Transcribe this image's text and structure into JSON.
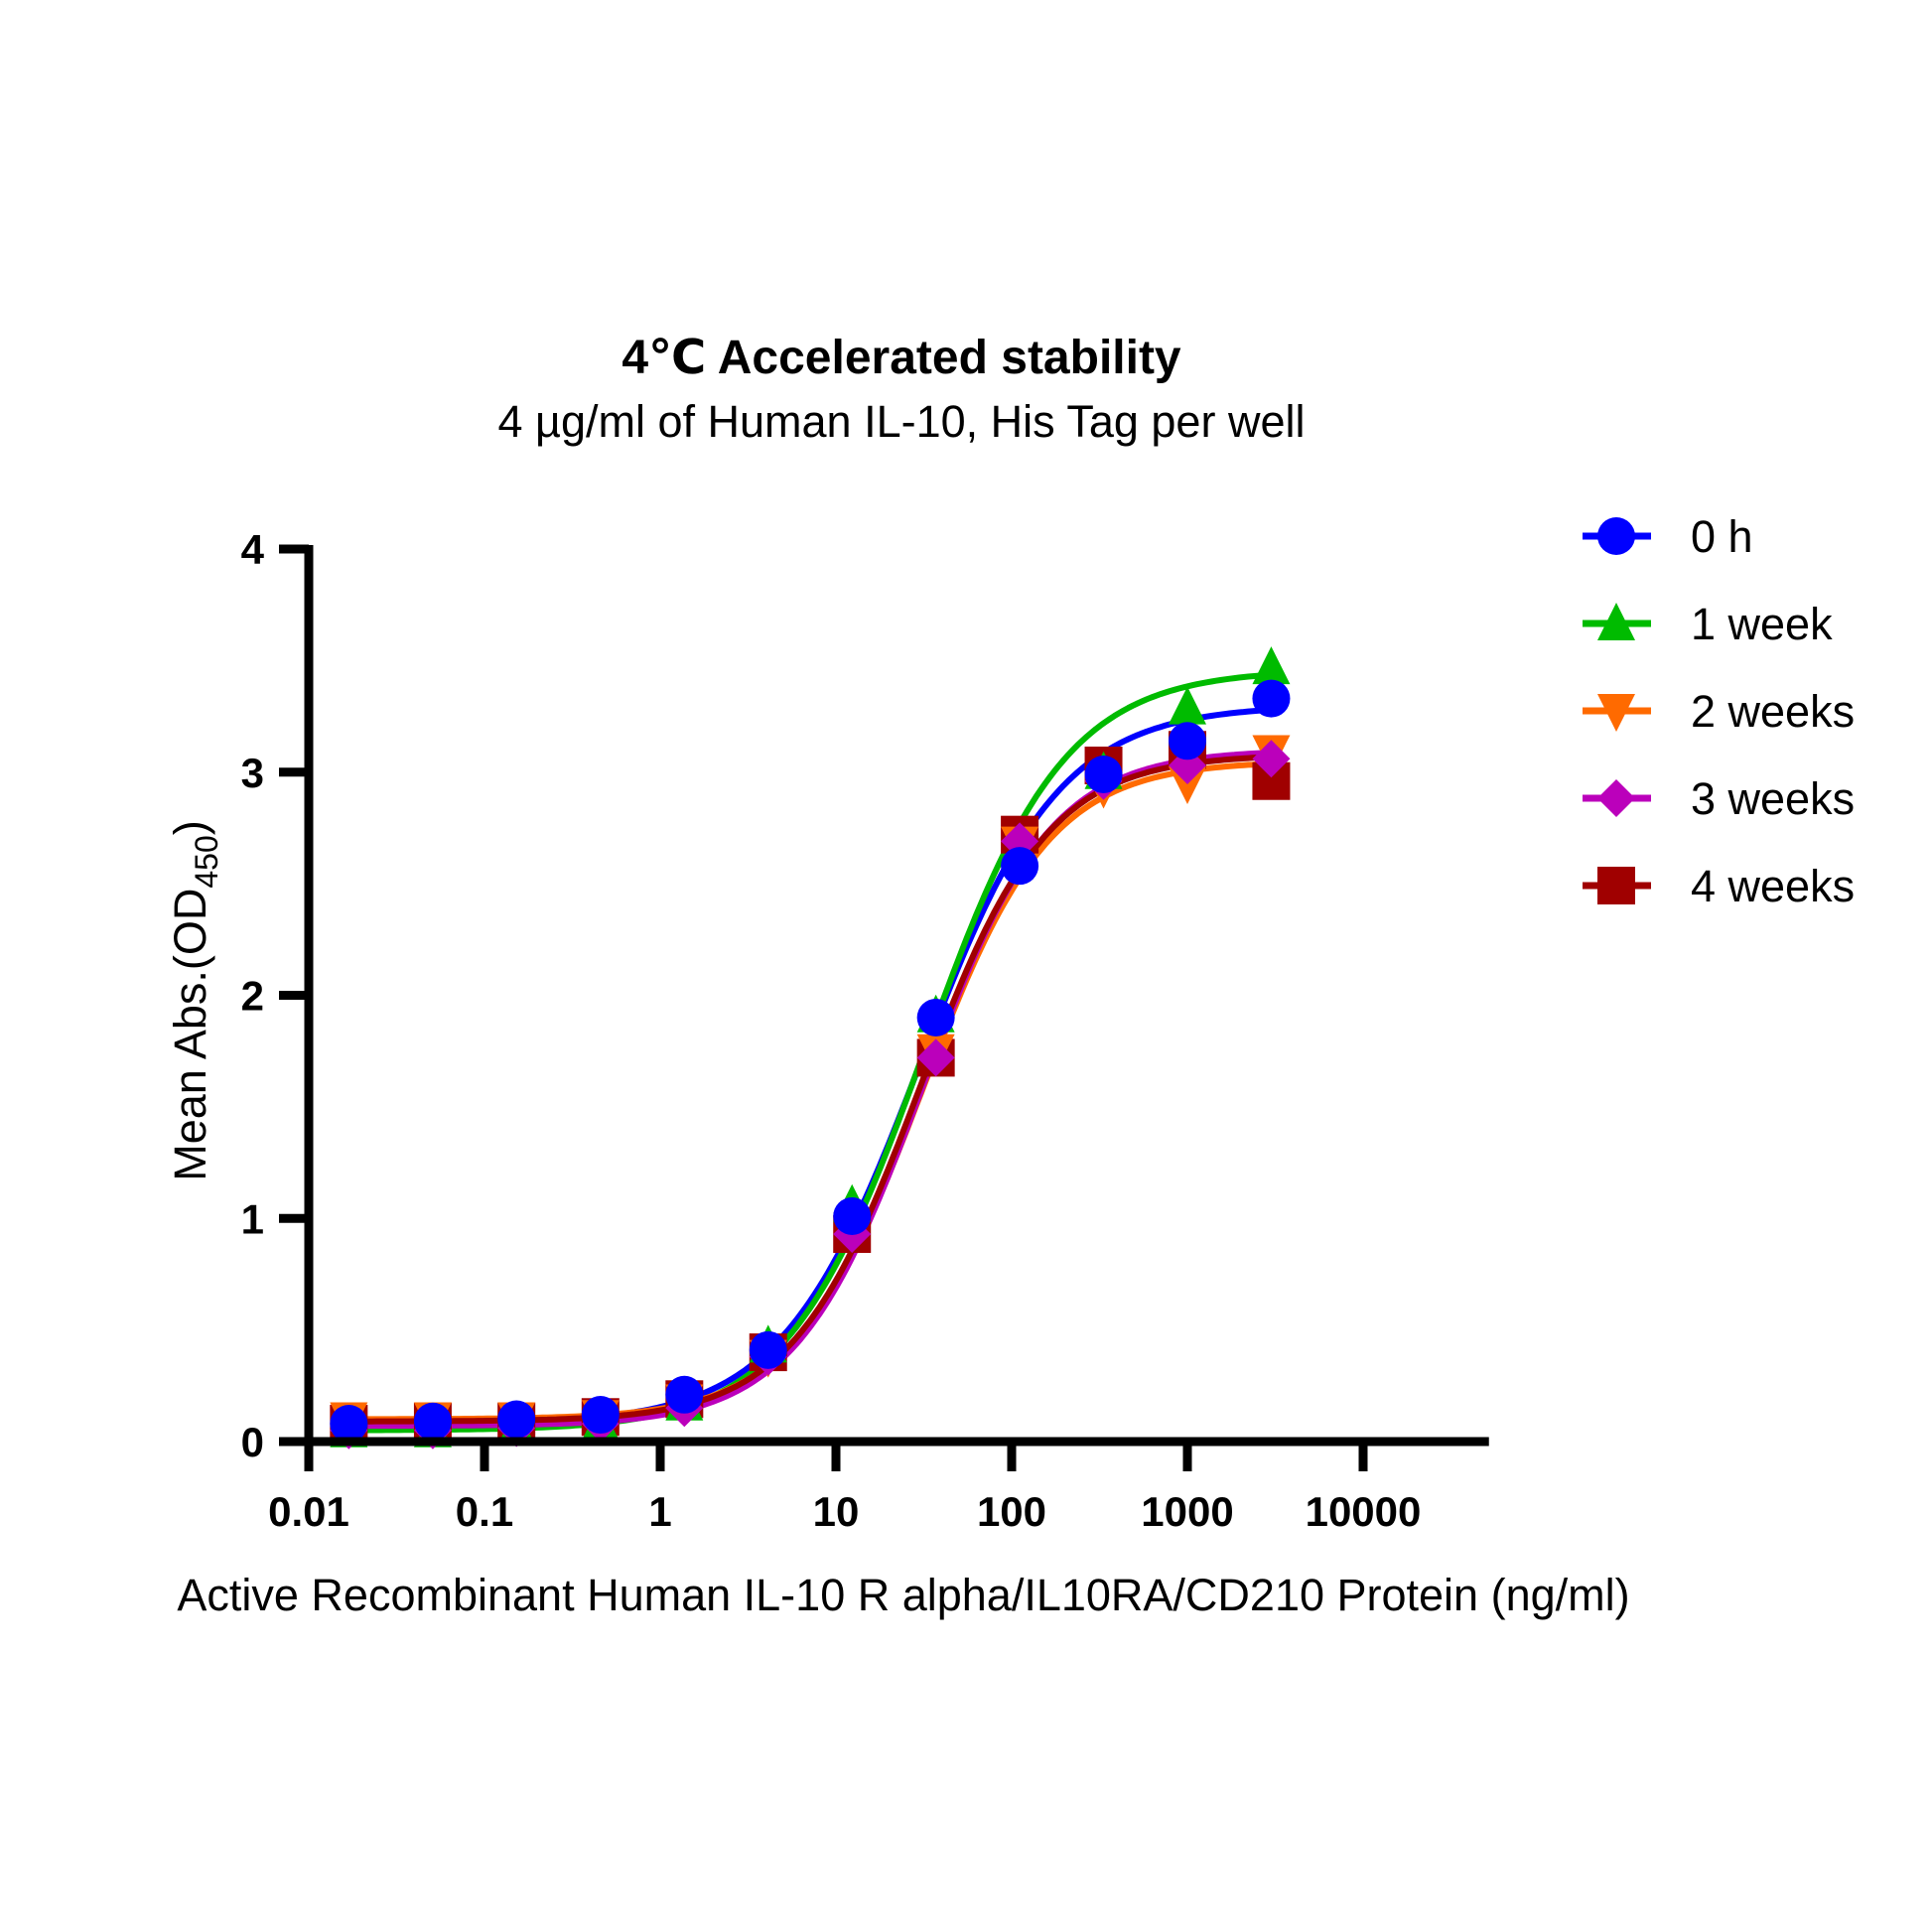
{
  "chart_data": {
    "type": "scatter",
    "title": "4℃ Accelerated stability",
    "subtitle": "4 µg/ml of Human IL-10, His Tag per well",
    "xlabel": "Active Recombinant Human IL-10 R alpha/IL10RA/CD210 Protein (ng/ml)",
    "ylabel_main": "Mean Abs.(OD",
    "ylabel_sub": "450",
    "ylabel_close": ")",
    "xscale": "log",
    "xlim": [
      0.01,
      52000
    ],
    "ylim": [
      0,
      4
    ],
    "xticks": [
      0.01,
      0.1,
      1,
      10,
      100,
      1000,
      10000
    ],
    "xtick_labels": [
      "0.01",
      "0.1",
      "1",
      "10",
      "100",
      "1000",
      "10000"
    ],
    "yticks": [
      0,
      1,
      2,
      3,
      4
    ],
    "ytick_labels": [
      "0",
      "1",
      "2",
      "3",
      "4"
    ],
    "grid": false,
    "legend_position": "right",
    "x": [
      0.0169,
      0.0508,
      0.152,
      0.457,
      1.372,
      4.115,
      12.35,
      37.04,
      111.1,
      333.3,
      1000,
      3000
    ],
    "series": [
      {
        "name": "0 h",
        "color": "#0000FF",
        "marker": "circle",
        "values": [
          0.08,
          0.09,
          0.1,
          0.12,
          0.21,
          0.41,
          1.01,
          1.9,
          2.58,
          2.99,
          3.14,
          3.33
        ],
        "fit": {
          "bottom": 0.08,
          "top": 3.3,
          "ec50": 30,
          "hill": 1.1
        }
      },
      {
        "name": "1 week",
        "color": "#00BB00",
        "marker": "triangle-up",
        "values": [
          0.05,
          0.05,
          0.06,
          0.08,
          0.17,
          0.43,
          1.06,
          1.91,
          2.65,
          3.0,
          3.29,
          3.47
        ],
        "fit": {
          "bottom": 0.05,
          "top": 3.46,
          "ec50": 32,
          "hill": 1.1
        }
      },
      {
        "name": "2 weeks",
        "color": "#FF6A00",
        "marker": "triangle-down",
        "values": [
          0.1,
          0.1,
          0.1,
          0.11,
          0.18,
          0.38,
          0.95,
          1.75,
          2.68,
          2.93,
          2.95,
          3.09
        ],
        "fit": {
          "bottom": 0.1,
          "top": 3.05,
          "ec50": 31,
          "hill": 1.2
        }
      },
      {
        "name": "3 weeks",
        "color": "#BB00BB",
        "marker": "diamond",
        "values": [
          0.05,
          0.05,
          0.06,
          0.08,
          0.15,
          0.38,
          0.93,
          1.72,
          2.69,
          2.96,
          3.03,
          3.06
        ],
        "fit": {
          "bottom": 0.07,
          "top": 3.1,
          "ec50": 31,
          "hill": 1.2
        }
      },
      {
        "name": "4 weeks",
        "color": "#A00000",
        "marker": "square",
        "values": [
          0.08,
          0.09,
          0.09,
          0.11,
          0.19,
          0.4,
          0.93,
          1.72,
          2.72,
          3.03,
          3.1,
          2.96
        ],
        "fit": {
          "bottom": 0.09,
          "top": 3.08,
          "ec50": 30,
          "hill": 1.2
        }
      }
    ]
  }
}
